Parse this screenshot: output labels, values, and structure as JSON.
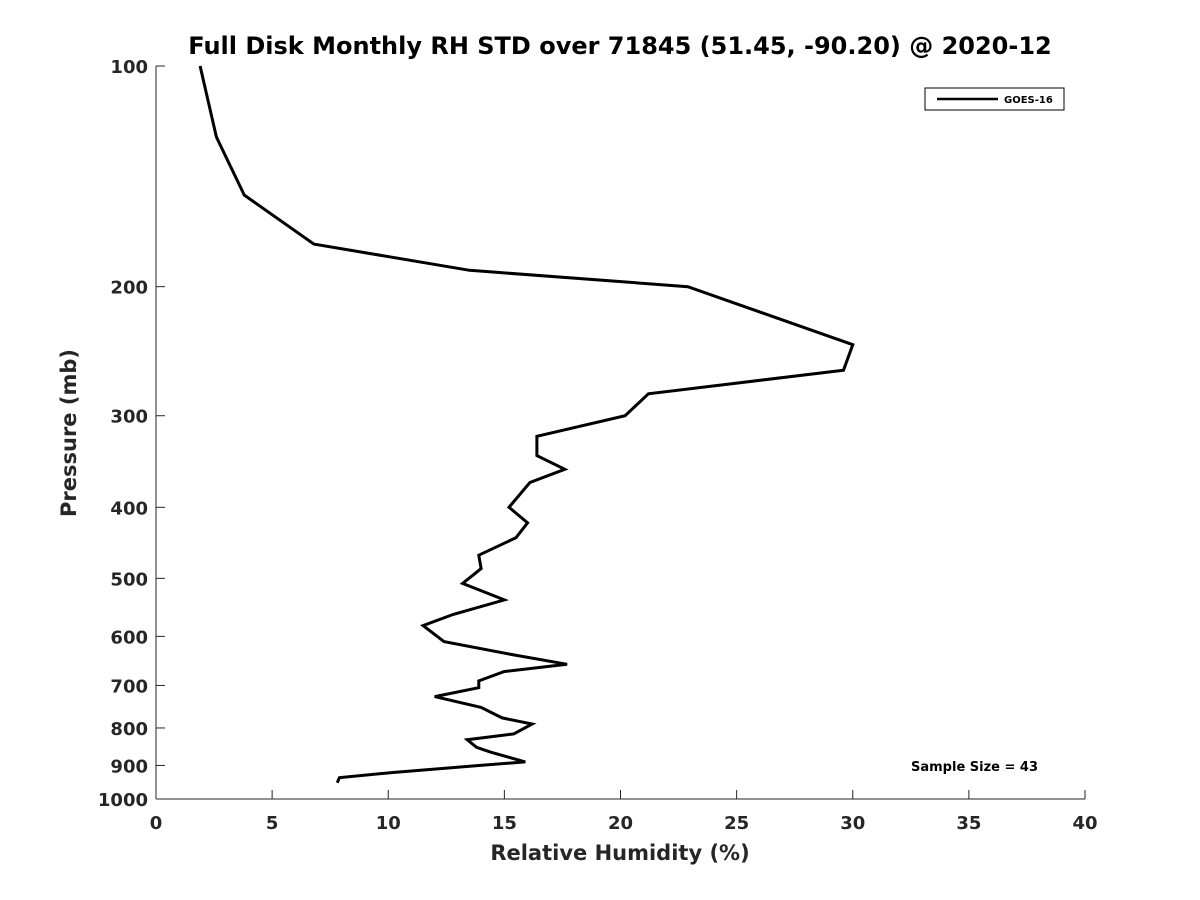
{
  "chart_data": {
    "type": "line",
    "title": "Full Disk Monthly RH STD over 71845 (51.45, -90.20) @ 2020-12",
    "xlabel": "Relative Humidity (%)",
    "ylabel": "Pressure (mb)",
    "xlim": [
      0,
      40
    ],
    "ylim": [
      100,
      1000
    ],
    "y_scale": "log",
    "y_reversed": true,
    "grid": false,
    "legend_position": "top-right",
    "x_ticks": [
      "0",
      "5",
      "10",
      "15",
      "20",
      "25",
      "30",
      "35",
      "40"
    ],
    "y_ticks": [
      "100",
      "200",
      "300",
      "400",
      "500",
      "600",
      "700",
      "800",
      "900",
      "1000"
    ],
    "annotation": "Sample Size = 43",
    "series": [
      {
        "name": "GOES-16",
        "color": "#000000",
        "points": [
          [
            1.9,
            100
          ],
          [
            2.6,
            125
          ],
          [
            3.8,
            150
          ],
          [
            6.8,
            175
          ],
          [
            13.5,
            190
          ],
          [
            22.9,
            200
          ],
          [
            30.0,
            240
          ],
          [
            29.6,
            260
          ],
          [
            21.2,
            280
          ],
          [
            20.2,
            300
          ],
          [
            16.4,
            320
          ],
          [
            16.4,
            340
          ],
          [
            17.6,
            355
          ],
          [
            16.1,
            370
          ],
          [
            15.2,
            400
          ],
          [
            16.0,
            420
          ],
          [
            15.5,
            440
          ],
          [
            13.9,
            465
          ],
          [
            14.0,
            485
          ],
          [
            13.2,
            508
          ],
          [
            15.0,
            535
          ],
          [
            12.8,
            560
          ],
          [
            11.5,
            580
          ],
          [
            12.4,
            610
          ],
          [
            15.4,
            636
          ],
          [
            17.7,
            655
          ],
          [
            15.0,
            670
          ],
          [
            13.9,
            690
          ],
          [
            13.9,
            705
          ],
          [
            12.0,
            725
          ],
          [
            14.0,
            750
          ],
          [
            14.9,
            775
          ],
          [
            16.2,
            790
          ],
          [
            15.4,
            815
          ],
          [
            13.4,
            830
          ],
          [
            13.8,
            850
          ],
          [
            14.4,
            863
          ],
          [
            15.9,
            890
          ],
          [
            13.9,
            900
          ],
          [
            10.2,
            920
          ],
          [
            7.9,
            935
          ],
          [
            7.8,
            950
          ]
        ]
      }
    ]
  }
}
